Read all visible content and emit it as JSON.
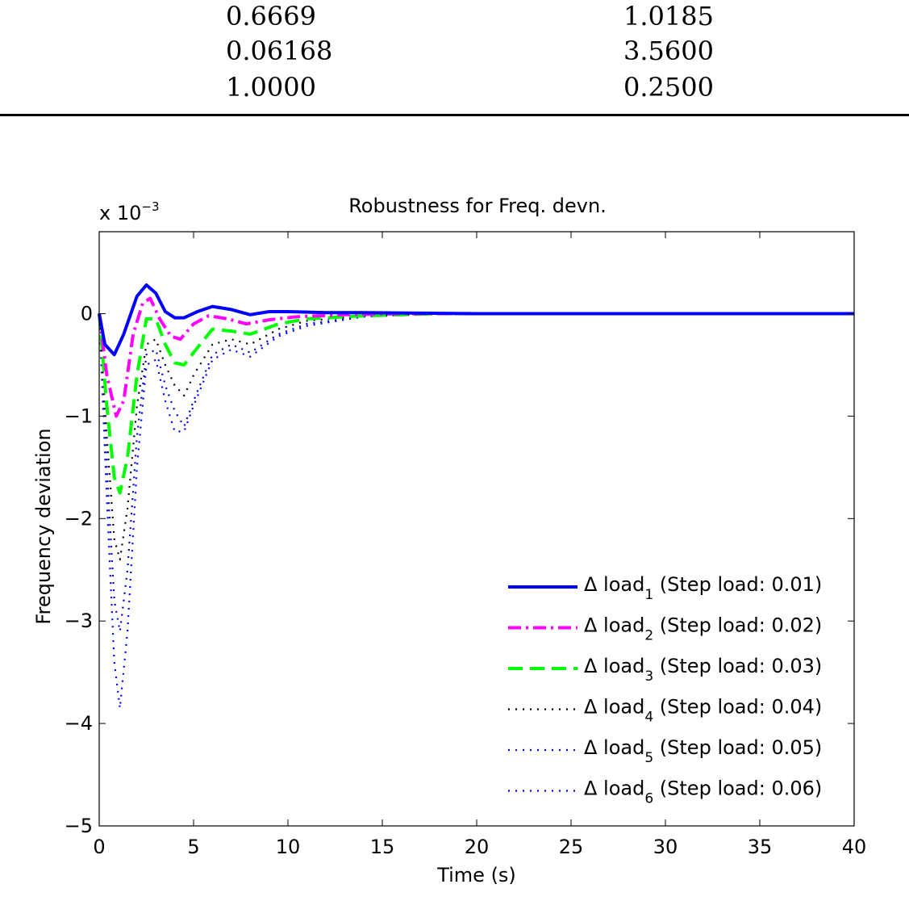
{
  "table": {
    "rows": [
      [
        "0.6669",
        "1.0185"
      ],
      [
        "0.06168",
        "3.5600"
      ],
      [
        "1.0000",
        "0.2500"
      ]
    ]
  },
  "chart_data": {
    "type": "line",
    "title": "Robustness for Freq. devn.",
    "xlabel": "Time (s)",
    "ylabel": "Frequency deviation",
    "y_exponent_label": "x 10",
    "y_exponent_sup": "−3",
    "xlim": [
      0,
      40
    ],
    "ylim": [
      -5,
      0.8
    ],
    "y_scale_factor": 0.001,
    "xticks": [
      0,
      5,
      10,
      15,
      20,
      25,
      30,
      35,
      40
    ],
    "xtick_labels": [
      "0",
      "5",
      "10",
      "15",
      "20",
      "25",
      "30",
      "35",
      "40"
    ],
    "yticks": [
      0,
      -1,
      -2,
      -3,
      -4,
      -5
    ],
    "ytick_labels": [
      "0",
      "−1",
      "−2",
      "−3",
      "−4",
      "−5"
    ],
    "grid": false,
    "legend_position": "bottom-right",
    "series": [
      {
        "name": "Δ load1 (Step load: 0.01)",
        "legend_prefix": "Δ load",
        "legend_sub": "1",
        "legend_suffix": " (Step load: 0.01)",
        "color": "#0000ff",
        "style": "solid",
        "x": [
          0,
          0.3,
          0.8,
          1.3,
          2.0,
          2.5,
          3.0,
          3.5,
          4.0,
          4.5,
          5.2,
          6.0,
          7.0,
          8.0,
          9.0,
          10.0,
          12.0,
          14.0,
          20.0,
          40.0
        ],
        "y": [
          0,
          -0.3,
          -0.4,
          -0.2,
          0.17,
          0.28,
          0.2,
          0.02,
          -0.04,
          -0.04,
          0.02,
          0.07,
          0.04,
          -0.01,
          0.02,
          0.02,
          0.01,
          0.01,
          0,
          0
        ]
      },
      {
        "name": "Δ load2 (Step load: 0.02)",
        "legend_prefix": "Δ load",
        "legend_sub": "2",
        "legend_suffix": " (Step load: 0.02)",
        "color": "#ff00ff",
        "style": "dashdot",
        "x": [
          0,
          0.4,
          0.9,
          1.3,
          1.8,
          2.3,
          2.7,
          3.2,
          3.8,
          4.3,
          5.0,
          5.8,
          6.8,
          7.8,
          9.0,
          10.5,
          13.0,
          16.0,
          40.0
        ],
        "y": [
          0,
          -0.6,
          -1.0,
          -0.85,
          -0.2,
          0.1,
          0.15,
          -0.05,
          -0.22,
          -0.25,
          -0.1,
          -0.02,
          -0.05,
          -0.1,
          -0.06,
          -0.03,
          -0.01,
          0,
          0
        ]
      },
      {
        "name": "Δ load3 (Step load: 0.03)",
        "legend_prefix": "Δ load",
        "legend_sub": "3",
        "legend_suffix": " (Step load: 0.03)",
        "color": "#00ff00",
        "style": "dashed",
        "x": [
          0,
          0.4,
          0.8,
          1.1,
          1.5,
          2.0,
          2.5,
          3.0,
          3.5,
          4.0,
          4.5,
          5.0,
          6.0,
          7.0,
          8.0,
          9.5,
          11.0,
          14.0,
          18.0,
          40.0
        ],
        "y": [
          0,
          -0.9,
          -1.6,
          -1.75,
          -1.4,
          -0.6,
          -0.05,
          -0.05,
          -0.3,
          -0.48,
          -0.5,
          -0.38,
          -0.15,
          -0.17,
          -0.2,
          -0.1,
          -0.05,
          -0.02,
          0,
          0
        ]
      },
      {
        "name": "Δ load4 (Step load: 0.04)",
        "legend_prefix": "Δ load",
        "legend_sub": "4",
        "legend_suffix": " (Step load: 0.04)",
        "color": "#000000",
        "style": "dotted",
        "x": [
          0,
          0.4,
          0.8,
          1.1,
          1.5,
          2.0,
          2.5,
          3.0,
          3.5,
          4.0,
          4.5,
          5.0,
          6.0,
          7.0,
          8.0,
          9.5,
          11.0,
          14.0,
          18.0,
          40.0
        ],
        "y": [
          0,
          -1.2,
          -2.2,
          -2.4,
          -1.9,
          -0.9,
          -0.3,
          -0.25,
          -0.5,
          -0.7,
          -0.8,
          -0.6,
          -0.3,
          -0.25,
          -0.3,
          -0.15,
          -0.07,
          -0.02,
          0,
          0
        ]
      },
      {
        "name": "Δ load5 (Step load: 0.05)",
        "legend_prefix": "Δ load",
        "legend_sub": "5",
        "legend_suffix": " (Step load: 0.05)",
        "color": "#0000cc",
        "style": "dotted",
        "x": [
          0,
          0.4,
          0.8,
          1.1,
          1.5,
          2.0,
          2.5,
          3.0,
          3.5,
          4.0,
          4.5,
          5.0,
          6.0,
          7.0,
          8.0,
          9.5,
          11.0,
          14.0,
          18.0,
          40.0
        ],
        "y": [
          0,
          -1.5,
          -2.8,
          -3.1,
          -2.5,
          -1.2,
          -0.4,
          -0.35,
          -0.7,
          -0.95,
          -1.1,
          -0.85,
          -0.4,
          -0.3,
          -0.38,
          -0.2,
          -0.1,
          -0.03,
          0,
          0
        ]
      },
      {
        "name": "Δ load6 (Step load: 0.06)",
        "legend_prefix": "Δ load",
        "legend_sub": "6",
        "legend_suffix": " (Step load: 0.06)",
        "color": "#0000ff",
        "style": "dotted",
        "x": [
          0,
          0.4,
          0.8,
          1.1,
          1.5,
          2.0,
          2.5,
          3.0,
          3.5,
          4.0,
          4.5,
          5.0,
          6.0,
          7.0,
          8.0,
          9.5,
          11.0,
          14.0,
          18.0,
          40.0
        ],
        "y": [
          0,
          -1.8,
          -3.4,
          -3.85,
          -3.1,
          -1.5,
          -0.5,
          -0.45,
          -0.85,
          -1.15,
          -1.15,
          -0.9,
          -0.45,
          -0.35,
          -0.42,
          -0.22,
          -0.12,
          -0.03,
          0,
          0
        ]
      }
    ]
  }
}
